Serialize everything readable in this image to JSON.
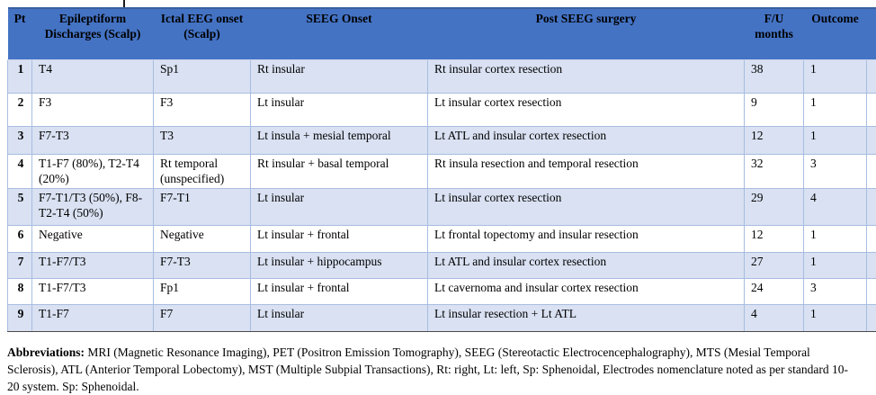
{
  "table": {
    "columns": [
      "Pt",
      "Epileptiform Discharges (Scalp)",
      "Ictal EEG onset (Scalp)",
      "SEEG Onset",
      "Post SEEG surgery",
      "F/U months",
      "Outcome"
    ],
    "rows": [
      {
        "pt": "1",
        "epileptiform": "T4",
        "ictal": "Sp1",
        "seeg": "Rt insular",
        "surgery": "Rt insular cortex resection",
        "fu": "38",
        "outcome": "1"
      },
      {
        "pt": "2",
        "epileptiform": "F3",
        "ictal": "F3",
        "seeg": "Lt insular",
        "surgery": "Lt insular cortex resection",
        "fu": "9",
        "outcome": "1"
      },
      {
        "pt": "3",
        "epileptiform": "F7-T3",
        "ictal": "T3",
        "seeg": "Lt insula + mesial temporal",
        "surgery": "Lt ATL and insular cortex resection",
        "fu": "12",
        "outcome": "1"
      },
      {
        "pt": "4",
        "epileptiform": "T1-F7 (80%), T2-T4 (20%)",
        "ictal": "Rt temporal (unspecified)",
        "seeg": "Rt insular + basal temporal",
        "surgery": "Rt insula resection and temporal resection",
        "fu": "32",
        "outcome": "3"
      },
      {
        "pt": "5",
        "epileptiform": "F7-T1/T3 (50%), F8-T2-T4 (50%)",
        "ictal": "F7-T1",
        "seeg": "Lt insular",
        "surgery": "Lt insular cortex resection",
        "fu": "29",
        "outcome": "4"
      },
      {
        "pt": "6",
        "epileptiform": "Negative",
        "ictal": "Negative",
        "seeg": "Lt insular + frontal",
        "surgery": "Lt frontal topectomy and insular resection",
        "fu": "12",
        "outcome": "1"
      },
      {
        "pt": "7",
        "epileptiform": "T1-F7/T3",
        "ictal": "F7-T3",
        "seeg": "Lt insular + hippocampus",
        "surgery": "Lt ATL and insular cortex resection",
        "fu": "27",
        "outcome": "1"
      },
      {
        "pt": "8",
        "epileptiform": "T1-F7/T3",
        "ictal": "Fp1",
        "seeg": "Lt insular + frontal",
        "surgery": "Lt cavernoma and insular cortex resection",
        "fu": "24",
        "outcome": "3"
      },
      {
        "pt": "9",
        "epileptiform": "T1-F7",
        "ictal": "F7",
        "seeg": "Lt insular",
        "surgery": "Lt insular resection + Lt ATL",
        "fu": "4",
        "outcome": "1"
      }
    ]
  },
  "footer": {
    "label": "Abbreviations:",
    "text": " MRI (Magnetic Resonance Imaging), PET (Positron Emission Tomography), SEEG (Stereotactic Electrocencephalography), MTS (Mesial Temporal Sclerosis), ATL (Anterior Temporal Lobectomy), MST (Multiple Subpial Transactions), Rt: right, Lt: left, Sp: Sphenoidal, Electrodes nomenclature noted as per standard 10-20 system. Sp: Sphenoidal."
  },
  "colors": {
    "header_bg": "#4473c4",
    "band_bg": "#d9e1f2",
    "inner_border": "#a8bde1",
    "top_border": "#3a5f9e",
    "bottom_border": "#4a4a4a"
  }
}
